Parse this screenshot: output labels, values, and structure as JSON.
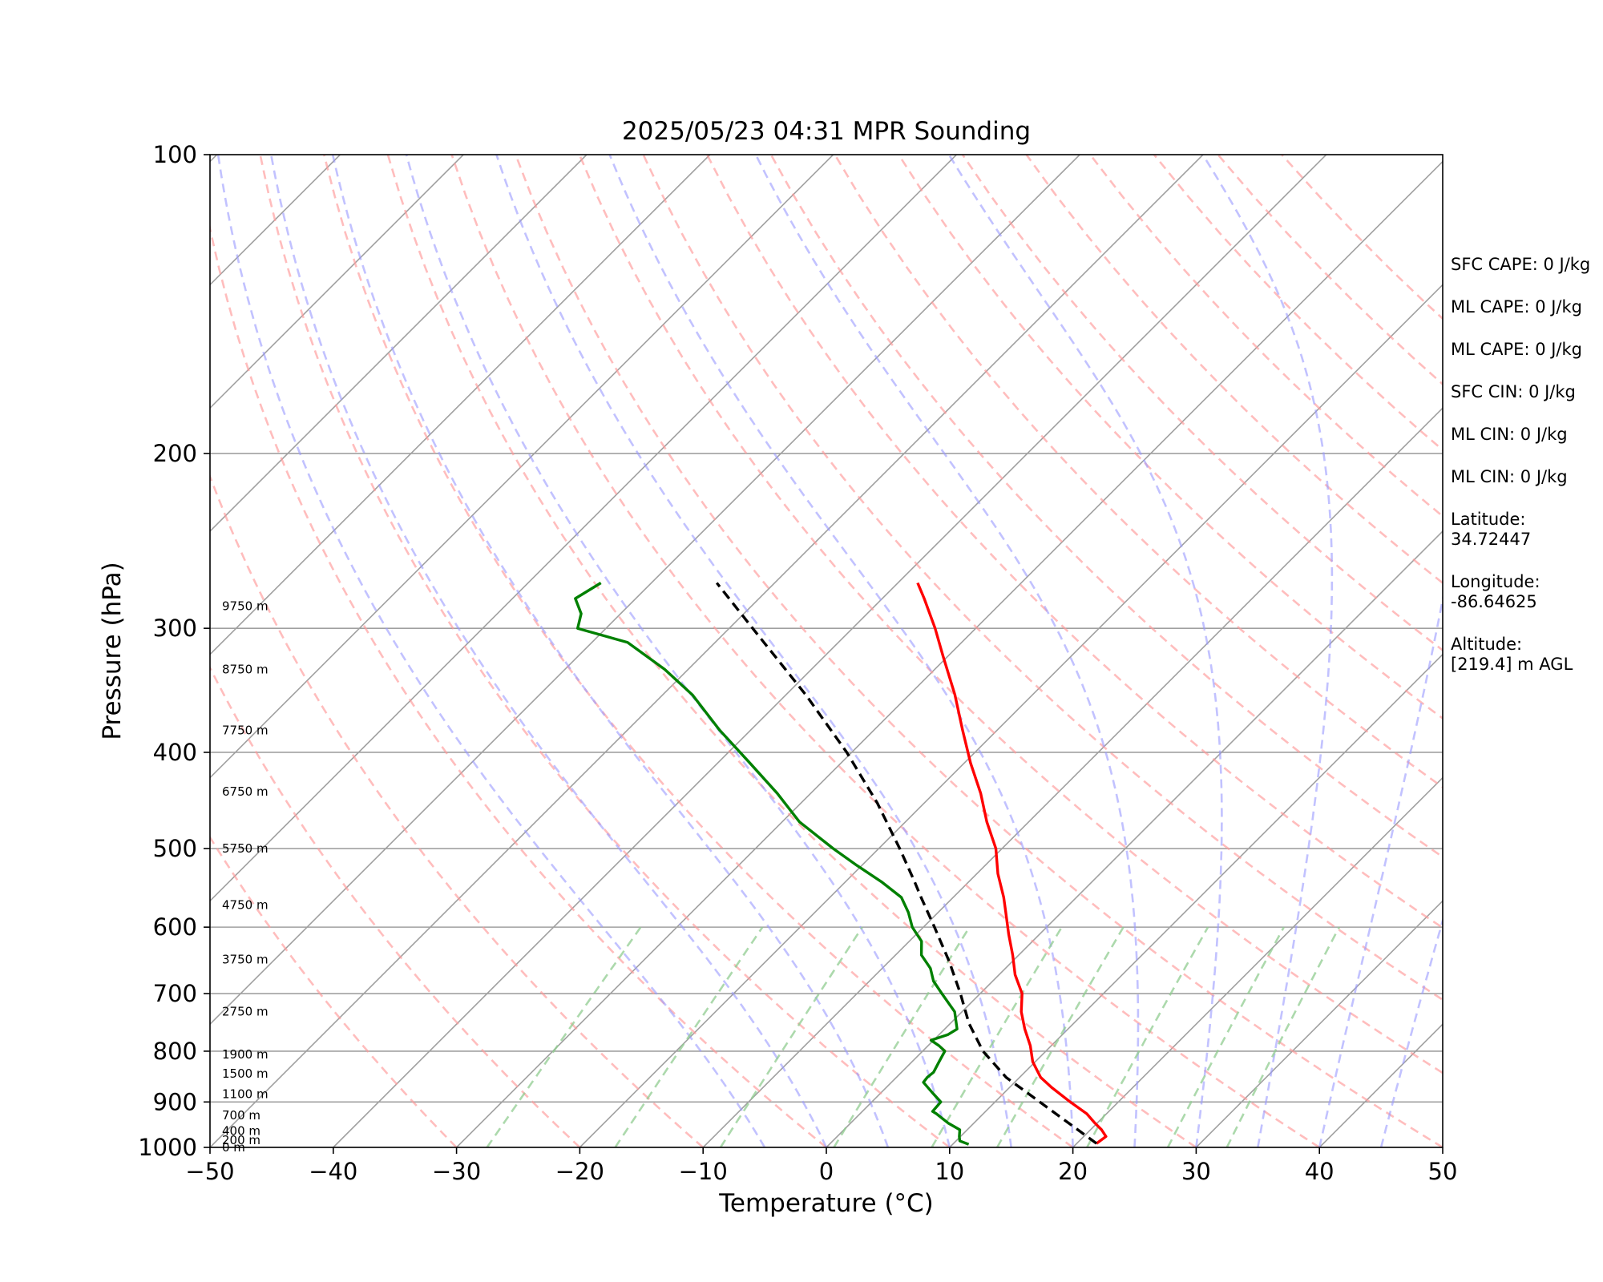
{
  "chart_data": {
    "type": "line",
    "title": "2025/05/23 04:31 MPR Sounding",
    "xlabel": "Temperature (°C)",
    "ylabel": "Pressure (hPa)",
    "xlim": [
      -50,
      50
    ],
    "ylim": [
      1000,
      100
    ],
    "y_scale": "log",
    "skew": true,
    "xticks": [
      -50,
      -40,
      -30,
      -20,
      -10,
      0,
      10,
      20,
      30,
      40,
      50
    ],
    "yticks": [
      1000,
      900,
      800,
      700,
      600,
      500,
      400,
      300,
      200,
      100
    ],
    "grid": "pressure lines only",
    "height_labels": [
      {
        "p": 1000,
        "label": "0 m"
      },
      {
        "p": 983,
        "label": "200 m"
      },
      {
        "p": 963,
        "label": "400 m"
      },
      {
        "p": 928,
        "label": "700 m"
      },
      {
        "p": 884,
        "label": "1100 m"
      },
      {
        "p": 843,
        "label": "1500 m"
      },
      {
        "p": 806,
        "label": "1900 m"
      },
      {
        "p": 730,
        "label": "2750 m"
      },
      {
        "p": 647,
        "label": "3750 m"
      },
      {
        "p": 570,
        "label": "4750 m"
      },
      {
        "p": 500,
        "label": "5750 m"
      },
      {
        "p": 438,
        "label": "6750 m"
      },
      {
        "p": 380,
        "label": "7750 m"
      },
      {
        "p": 330,
        "label": "8750 m"
      },
      {
        "p": 285,
        "label": "9750 m"
      }
    ],
    "series": [
      {
        "role": "temperature",
        "color": "#ff0000",
        "p": [
          991,
          975,
          960,
          945,
          925,
          900,
          870,
          850,
          820,
          790,
          760,
          730,
          700,
          670,
          640,
          610,
          580,
          560,
          530,
          500,
          470,
          440,
          410,
          380,
          350,
          320,
          300,
          280,
          270
        ],
        "t": [
          21.6,
          21.8,
          20.9,
          19.8,
          18.4,
          16.1,
          13.4,
          11.7,
          9.8,
          8.3,
          6.5,
          4.8,
          3.4,
          1.3,
          -0.5,
          -2.5,
          -4.5,
          -5.9,
          -8.3,
          -10.5,
          -13.4,
          -16.2,
          -19.5,
          -22.8,
          -26.3,
          -30.4,
          -33.3,
          -36.6,
          -38.4
        ]
      },
      {
        "role": "dewpoint",
        "color": "#008000",
        "p": [
          993,
          985,
          975,
          960,
          945,
          925,
          920,
          900,
          880,
          860,
          850,
          840,
          820,
          800,
          790,
          780,
          770,
          760,
          730,
          700,
          680,
          660,
          640,
          620,
          600,
          580,
          560,
          540,
          520,
          500,
          470,
          440,
          410,
          380,
          350,
          330,
          310,
          300,
          290,
          280,
          270
        ],
        "t": [
          11.3,
          10.3,
          9.9,
          9.4,
          7.9,
          6.2,
          5.7,
          5.6,
          4.1,
          2.6,
          2.5,
          2.6,
          2.2,
          1.8,
          0.9,
          -0.2,
          0.7,
          1.0,
          -0.6,
          -3.1,
          -4.8,
          -6.1,
          -7.9,
          -9.0,
          -10.9,
          -12.4,
          -14.2,
          -17.1,
          -20.4,
          -23.7,
          -28.6,
          -32.7,
          -37.4,
          -42.5,
          -47.6,
          -51.9,
          -57.1,
          -62.3,
          -63.2,
          -64.9,
          -64.1
        ]
      },
      {
        "role": "parcel",
        "color": "#000000",
        "style": "dashed",
        "p": [
          991,
          850,
          800,
          750,
          700,
          650,
          600,
          560,
          540,
          500,
          450,
          400,
          350,
          300,
          270
        ],
        "t": [
          21.6,
          8.9,
          4.9,
          1.5,
          -1.6,
          -5.1,
          -9.1,
          -12.6,
          -14.4,
          -18.3,
          -23.8,
          -30.4,
          -38.4,
          -48.1,
          -54.7
        ]
      }
    ]
  },
  "side_panel": {
    "sfc_cape": "SFC CAPE: 0 J/kg",
    "ml_cape_1": "ML CAPE: 0 J/kg",
    "ml_cape_2": "ML CAPE: 0 J/kg",
    "sfc_cin": "SFC CIN: 0 J/kg",
    "ml_cin_1": "ML CIN: 0 J/kg",
    "ml_cin_2": "ML CIN: 0 J/kg",
    "latitude_label": "Latitude:",
    "latitude_value": "34.72447",
    "longitude_label": "Longitude:",
    "longitude_value": "-86.64625",
    "altitude_label": "Altitude:",
    "altitude_value": "[219.4] m AGL"
  },
  "colors": {
    "isotherm": "#a0a0a0",
    "dry_adiabat": "#ff9a9a",
    "moist_adiabat": "#9a9aff",
    "mixing_ratio": "#90cc90",
    "pressure_grid": "#a0a0a0"
  }
}
